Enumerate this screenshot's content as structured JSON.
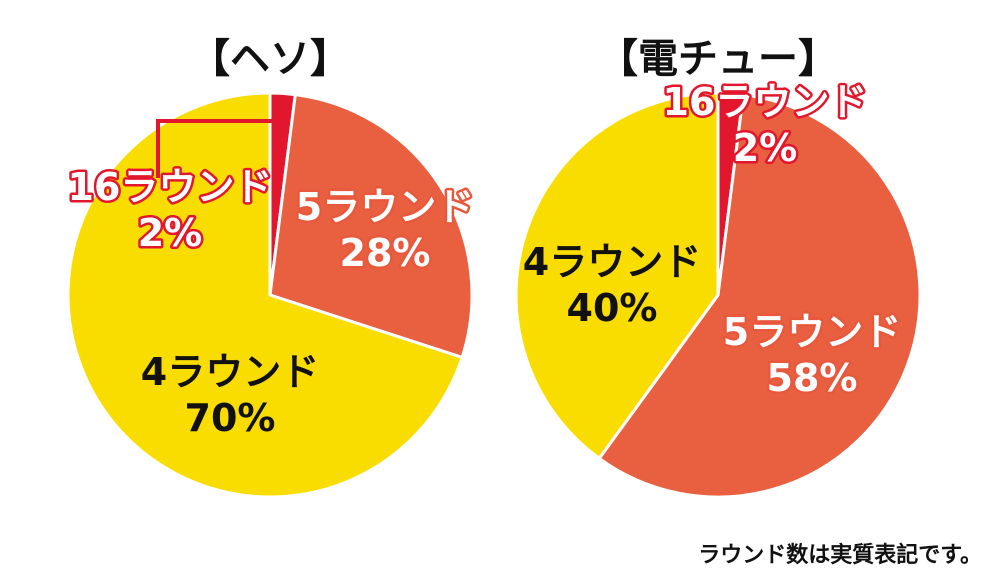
{
  "chart_data": [
    {
      "type": "pie",
      "title": "【ヘソ】",
      "start": "12 o'clock, clockwise",
      "slices": [
        {
          "name": "16ラウンド",
          "value": 2,
          "label": "2%",
          "color": "#e2162c"
        },
        {
          "name": "5ラウンド",
          "value": 28,
          "label": "28%",
          "color": "#e8603f"
        },
        {
          "name": "4ラウンド",
          "value": 70,
          "label": "70%",
          "color": "#fadd00"
        }
      ]
    },
    {
      "type": "pie",
      "title": "【電チュー】",
      "start": "12 o'clock, clockwise",
      "slices": [
        {
          "name": "16ラウンド",
          "value": 2,
          "label": "2%",
          "color": "#e2162c"
        },
        {
          "name": "5ラウンド",
          "value": 58,
          "label": "58%",
          "color": "#e8603f"
        },
        {
          "name": "4ラウンド",
          "value": 40,
          "label": "40%",
          "color": "#fadd00"
        }
      ]
    }
  ],
  "footnote": "ラウンド数は実質表記です。"
}
